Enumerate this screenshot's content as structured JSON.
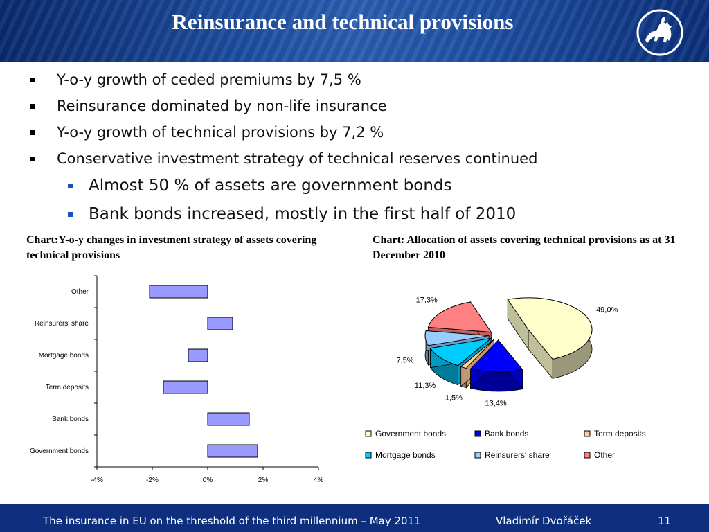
{
  "title": "Reinsurance and technical provisions",
  "bullets": [
    "Y-o-y growth of ceded premiums by 7,5 %",
    "Reinsurance dominated by non-life insurance",
    "Y-o-y growth of technical provisions by 7,2 %",
    "Conservative investment strategy of technical reserves continued"
  ],
  "sub_bullets": [
    "Almost 50 % of assets are government bonds",
    "Bank bonds increased, mostly in the first half of 2010"
  ],
  "chart_left_title": "Chart:Y-o-y changes in investment strategy of assets covering technical provisions",
  "chart_right_title": "Chart: Allocation of assets covering technical provisions as at 31 December 2010",
  "footer": {
    "left": "The insurance in EU on the threshold of the third millennium – May 2011",
    "author": "Vladimír Dvořáček",
    "page": "11"
  },
  "colors": {
    "header": "#1d4ea0",
    "footer": "#0d2f7e",
    "bar": "#9999ff"
  },
  "chart_data": [
    {
      "type": "bar",
      "orientation": "horizontal",
      "categories": [
        "Other",
        "Reinsurers' share",
        "Mortgage bonds",
        "Term deposits",
        "Bank bonds",
        "Government bonds"
      ],
      "values": [
        -2.1,
        0.9,
        -0.7,
        -1.6,
        1.5,
        1.8
      ],
      "xlim": [
        -4,
        4
      ],
      "xticks": [
        "-4%",
        "-2%",
        "0%",
        "2%",
        "4%"
      ],
      "color": "#9999ff"
    },
    {
      "type": "pie",
      "labels": [
        "Government bonds",
        "Bank bonds",
        "Term deposits",
        "Mortgage bonds",
        "Reinsurers' share",
        "Other"
      ],
      "values": [
        49.0,
        13.4,
        1.5,
        11.3,
        7.5,
        17.3
      ],
      "value_labels": [
        "49,0%",
        "13,4%",
        "1,5%",
        "11,3%",
        "7,5%",
        "17,3%"
      ],
      "colors": [
        "#ffffcc",
        "#0000ff",
        "#ffcc99",
        "#00ccff",
        "#99ccff",
        "#ff8080"
      ],
      "legend_position": "bottom"
    }
  ]
}
